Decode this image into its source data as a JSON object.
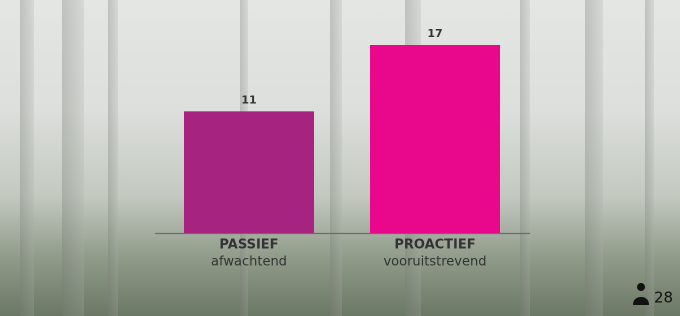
{
  "chart_data": {
    "type": "bar",
    "categories": [
      "PASSIEF",
      "PROACTIEF"
    ],
    "subcategories": [
      "afwachtend",
      "vooruitstrevend"
    ],
    "values": [
      11,
      17
    ],
    "colors": [
      "#a6247f",
      "#e9088c"
    ],
    "respondents": 28
  }
}
